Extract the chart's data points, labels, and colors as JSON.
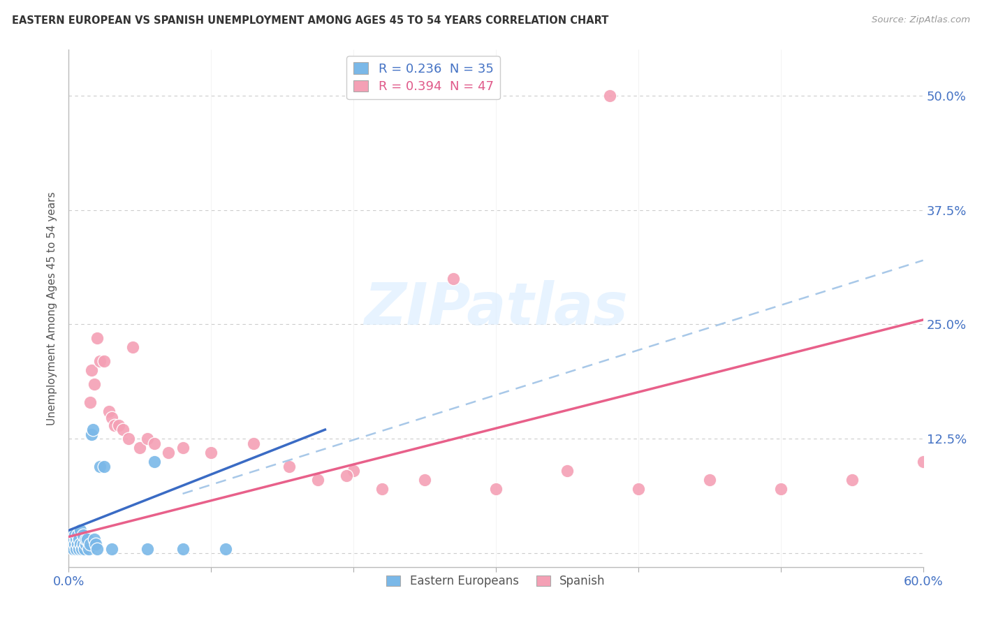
{
  "title": "EASTERN EUROPEAN VS SPANISH UNEMPLOYMENT AMONG AGES 45 TO 54 YEARS CORRELATION CHART",
  "source": "Source: ZipAtlas.com",
  "ylabel": "Unemployment Among Ages 45 to 54 years",
  "xlim": [
    0.0,
    0.6
  ],
  "ylim": [
    -0.015,
    0.55
  ],
  "ytick_right": [
    0.0,
    0.125,
    0.25,
    0.375,
    0.5
  ],
  "ytick_right_labels": [
    "",
    "12.5%",
    "25.0%",
    "37.5%",
    "50.0%"
  ],
  "blue_color": "#7ab8e8",
  "pink_color": "#f4a0b5",
  "blue_line_color": "#3a6bc4",
  "pink_line_color": "#e8608a",
  "dashed_line_color": "#a8c8e8",
  "watermark_text": "ZIPatlas",
  "watermark_color": "#ddeeff",
  "eastern_x": [
    0.001,
    0.002,
    0.003,
    0.003,
    0.004,
    0.004,
    0.005,
    0.005,
    0.006,
    0.006,
    0.007,
    0.007,
    0.008,
    0.008,
    0.009,
    0.01,
    0.01,
    0.011,
    0.012,
    0.012,
    0.013,
    0.014,
    0.015,
    0.016,
    0.017,
    0.018,
    0.019,
    0.02,
    0.022,
    0.025,
    0.03,
    0.055,
    0.06,
    0.08,
    0.11
  ],
  "eastern_y": [
    0.02,
    0.01,
    0.015,
    0.005,
    0.01,
    0.02,
    0.005,
    0.015,
    0.01,
    0.02,
    0.005,
    0.015,
    0.01,
    0.025,
    0.005,
    0.01,
    0.02,
    0.005,
    0.01,
    0.015,
    0.015,
    0.005,
    0.01,
    0.13,
    0.135,
    0.015,
    0.01,
    0.005,
    0.095,
    0.095,
    0.005,
    0.005,
    0.1,
    0.005,
    0.005
  ],
  "spanish_x": [
    0.002,
    0.003,
    0.004,
    0.005,
    0.006,
    0.007,
    0.008,
    0.009,
    0.01,
    0.011,
    0.012,
    0.013,
    0.015,
    0.016,
    0.018,
    0.02,
    0.022,
    0.025,
    0.028,
    0.03,
    0.032,
    0.035,
    0.038,
    0.042,
    0.045,
    0.05,
    0.055,
    0.06,
    0.2,
    0.22,
    0.25,
    0.27,
    0.3,
    0.35,
    0.38,
    0.4,
    0.45,
    0.5,
    0.55,
    0.6,
    0.07,
    0.08,
    0.1,
    0.13,
    0.155,
    0.175,
    0.195
  ],
  "spanish_y": [
    0.02,
    0.015,
    0.01,
    0.015,
    0.02,
    0.01,
    0.015,
    0.005,
    0.01,
    0.02,
    0.015,
    0.01,
    0.165,
    0.2,
    0.185,
    0.235,
    0.21,
    0.21,
    0.155,
    0.148,
    0.14,
    0.14,
    0.135,
    0.125,
    0.225,
    0.115,
    0.125,
    0.12,
    0.09,
    0.07,
    0.08,
    0.3,
    0.07,
    0.09,
    0.5,
    0.07,
    0.08,
    0.07,
    0.08,
    0.1,
    0.11,
    0.115,
    0.11,
    0.12,
    0.095,
    0.08,
    0.085
  ],
  "blue_trend_x": [
    0.0,
    0.18
  ],
  "blue_trend_y_start": 0.025,
  "blue_trend_y_end": 0.135,
  "pink_trend_x": [
    0.0,
    0.6
  ],
  "pink_trend_y_start": 0.018,
  "pink_trend_y_end": 0.255,
  "dashed_trend_x": [
    0.08,
    0.6
  ],
  "dashed_trend_y_start": 0.065,
  "dashed_trend_y_end": 0.32
}
